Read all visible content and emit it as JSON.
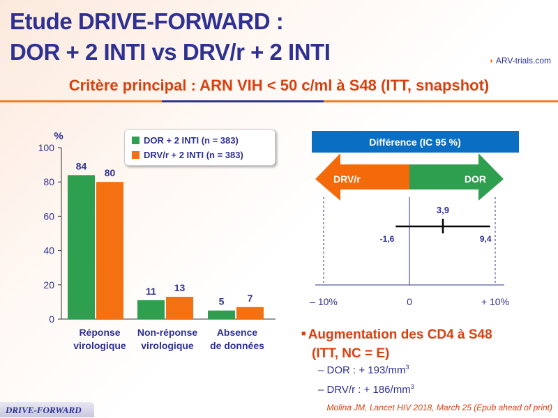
{
  "header": {
    "title_line1": "Etude DRIVE-FORWARD :",
    "title_line2": "DOR + 2 INTI vs DRV/r + 2 INTI",
    "logo": "ARV-trials.com",
    "subtitle": "Critère principal : ARN VIH < 50 c/ml à S48 (ITT, snapshot)"
  },
  "chart_data": [
    {
      "type": "bar",
      "ylabel": "%",
      "ylim": [
        0,
        100
      ],
      "yticks": [
        0,
        20,
        40,
        60,
        80,
        100
      ],
      "categories": [
        "Réponse virologique",
        "Non-réponse virologique",
        "Absence de données"
      ],
      "categories_lines": [
        [
          "Réponse",
          "virologique"
        ],
        [
          "Non-réponse",
          "virologique"
        ],
        [
          "Absence",
          "de données"
        ]
      ],
      "series": [
        {
          "name": "DOR + 2 INTI (n = 383)",
          "color": "#2e9e4f",
          "values": [
            84,
            11,
            5
          ]
        },
        {
          "name": "DRV/r + 2 INTI (n = 383)",
          "color": "#f47010",
          "values": [
            80,
            13,
            7
          ]
        }
      ],
      "legend": "top-right"
    },
    {
      "type": "forest",
      "title": "Différence (IC 95 %)",
      "left_label": "DRV/r",
      "right_label": "DOR",
      "left_color": "#f46a0a",
      "right_color": "#2e9e4f",
      "header_color": "#0a6fc2",
      "xlim": [
        -10,
        10
      ],
      "xticks": [
        "– 10%",
        "0",
        "+ 10%"
      ],
      "estimate": 3.9,
      "ci": [
        -1.6,
        9.4
      ],
      "estimate_label": "3,9",
      "ci_labels": [
        "-1,6",
        "9,4"
      ]
    }
  ],
  "cd4": {
    "heading_line1": "Augmentation des CD4 à S48",
    "heading_line2": "(ITT, NC = E)",
    "items": [
      {
        "label": "– DOR : + 193/mm",
        "sup": "3"
      },
      {
        "label": "– DRV/r : + 186/mm",
        "sup": "3"
      }
    ]
  },
  "citation": "Molina JM, Lancet HIV 2018, March 25 (Epub ahead of print)",
  "footer": "DRIVE-FORWARD"
}
